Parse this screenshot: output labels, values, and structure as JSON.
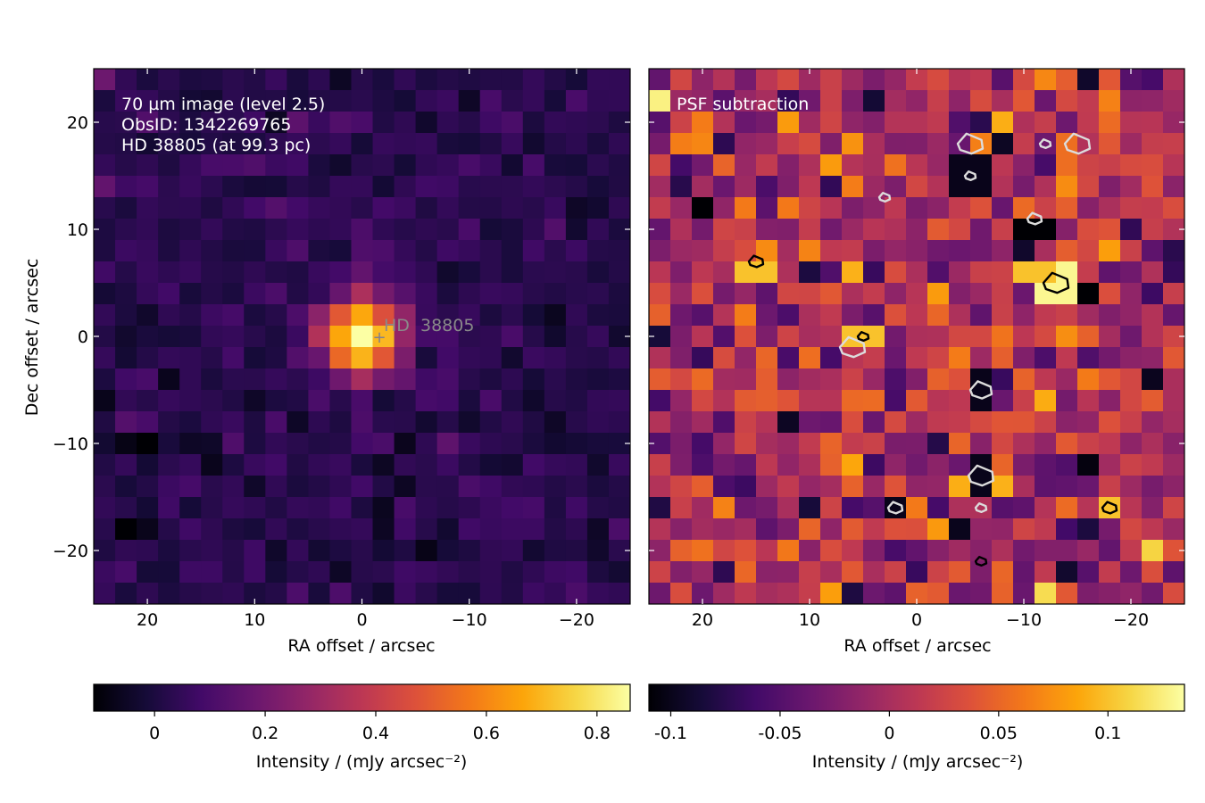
{
  "chart_data": [
    {
      "type": "heatmap",
      "panel": "left",
      "annotations": [
        "70 µm image (level 2.5)",
        "ObsID: 1342269765",
        "HD 38805 (at 99.3 pc)"
      ],
      "target_marker": {
        "label": "HD  38805",
        "x": -1.5,
        "y": 0.1
      },
      "xlabel": "RA offset / arcsec",
      "ylabel": "Dec offset / arcsec",
      "xlim": [
        25,
        -25
      ],
      "ylim": [
        -25,
        25
      ],
      "xticks": [
        20,
        10,
        0,
        -10,
        -20
      ],
      "xtick_labels": [
        "20",
        "10",
        "0",
        "−10",
        "−20"
      ],
      "yticks": [
        20,
        10,
        0,
        -10,
        -20
      ],
      "ytick_labels": [
        "20",
        "10",
        "0",
        "−10",
        "−20"
      ],
      "colorbar": {
        "label": "Intensity / (mJy arcsec⁻²)",
        "range": [
          -0.11,
          0.86
        ],
        "ticks": [
          0,
          0.2,
          0.4,
          0.6,
          0.8
        ],
        "tick_labels": [
          "0",
          "0.2",
          "0.4",
          "0.6",
          "0.8"
        ],
        "colormap": "inferno"
      },
      "grid": {
        "nx": 25,
        "ny": 25,
        "pixel_arcsec": 2
      },
      "source": {
        "x": 0,
        "y": 0,
        "peak": 0.85,
        "sigma_arcsec": 2.6
      },
      "background": {
        "mean": 0.03,
        "noise": 0.04
      }
    },
    {
      "type": "heatmap",
      "panel": "right",
      "annotations": [
        "PSF subtraction"
      ],
      "xlabel": "RA offset / arcsec",
      "xlim": [
        25,
        -25
      ],
      "ylim": [
        -25,
        25
      ],
      "xticks": [
        20,
        10,
        0,
        -10,
        -20
      ],
      "xtick_labels": [
        "20",
        "10",
        "0",
        "−10",
        "−20"
      ],
      "colorbar": {
        "label": "Intensity / (mJy arcsec⁻²)",
        "range": [
          -0.11,
          0.135
        ],
        "ticks": [
          -0.1,
          -0.05,
          0,
          0.05,
          0.1
        ],
        "tick_labels": [
          "-0.1",
          "-0.05",
          "0",
          "0.05",
          "0.1"
        ],
        "colormap": "inferno"
      },
      "grid": {
        "nx": 25,
        "ny": 25,
        "pixel_arcsec": 2
      },
      "background": {
        "mean": 0.0,
        "noise": 0.04
      },
      "bright_residuals": [
        {
          "x": -13,
          "y": 5,
          "value": 0.13
        },
        {
          "x": -11,
          "y": 6,
          "value": 0.1
        },
        {
          "x": 5,
          "y": 0,
          "value": 0.1
        },
        {
          "x": -18,
          "y": -16,
          "value": 0.1
        },
        {
          "x": 15,
          "y": 6,
          "value": 0.1
        }
      ],
      "negative_residuals": [
        {
          "x": -11,
          "y": 10,
          "value": -0.11
        },
        {
          "x": -5,
          "y": 15,
          "value": -0.1
        },
        {
          "x": -6,
          "y": -5,
          "value": -0.1
        },
        {
          "x": -6,
          "y": -13,
          "value": -0.1
        },
        {
          "x": 2,
          "y": -16,
          "value": -0.1
        }
      ],
      "contours": {
        "positive_color": "#000000",
        "negative_color": "#dcdcdc",
        "positive_at": [
          [
            -13,
            5
          ],
          [
            5,
            0
          ],
          [
            15,
            7
          ],
          [
            -18,
            -16
          ],
          [
            -6,
            -21
          ]
        ],
        "negative_at": [
          [
            -11,
            11
          ],
          [
            -5,
            15
          ],
          [
            -12,
            18
          ],
          [
            -15,
            18
          ],
          [
            -5,
            18
          ],
          [
            3,
            13
          ],
          [
            -6,
            -5
          ],
          [
            -6,
            -13
          ],
          [
            2,
            -16
          ],
          [
            6,
            -1
          ],
          [
            -6,
            -16
          ]
        ]
      }
    }
  ]
}
